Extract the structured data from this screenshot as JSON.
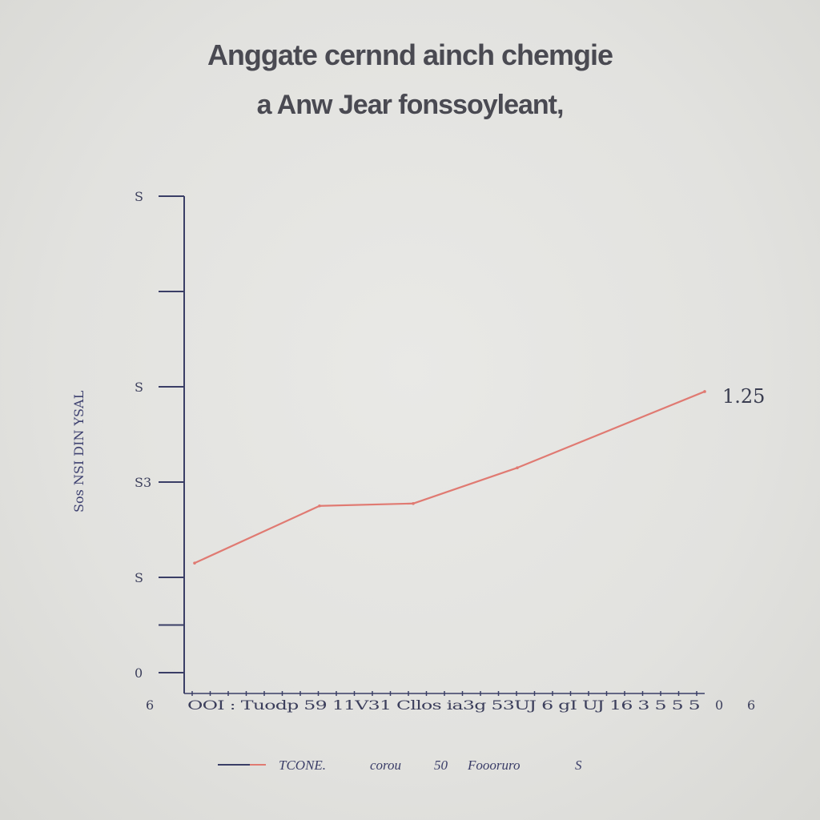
{
  "title_line1": "Anggate cernnd ainch chemgie",
  "title_line2": "a  Anw Jear fonssoyleant,",
  "colors": {
    "axis": "#3a3e66",
    "line": "#e07a72",
    "text": "#3c3f5c"
  },
  "chart_data": {
    "type": "line",
    "title": "Anggate cernnd ainch chemgie",
    "subtitle": "a  Anw Jear fonssoyleant,",
    "ylabel": "Sos NSI DIN YSAL",
    "xlabel": "",
    "x_axis_text": "OOI  : Tuodp 59  11V31  Cllos  ia3g  53UJ  6 gI  UJ  16  3  5  5 5",
    "x_edge_labels": [
      "6",
      "0",
      "6"
    ],
    "y_tick_labels": [
      "S",
      "",
      "S",
      "S3",
      "S",
      "",
      "0"
    ],
    "y_tick_values": [
      10,
      8,
      6,
      4,
      2,
      1,
      0
    ],
    "ylim": [
      0,
      10
    ],
    "xlim": [
      0,
      10
    ],
    "series": [
      {
        "name": "TCONE.",
        "x": [
          0.2,
          2.6,
          4.4,
          6.4,
          10.0
        ],
        "y": [
          2.3,
          3.5,
          3.55,
          4.3,
          5.9
        ]
      }
    ],
    "end_label": "1.25",
    "legend_entries": [
      "TCONE.",
      "corou",
      "50",
      "Foooruro",
      "S"
    ],
    "legend_position": "bottom-center"
  }
}
